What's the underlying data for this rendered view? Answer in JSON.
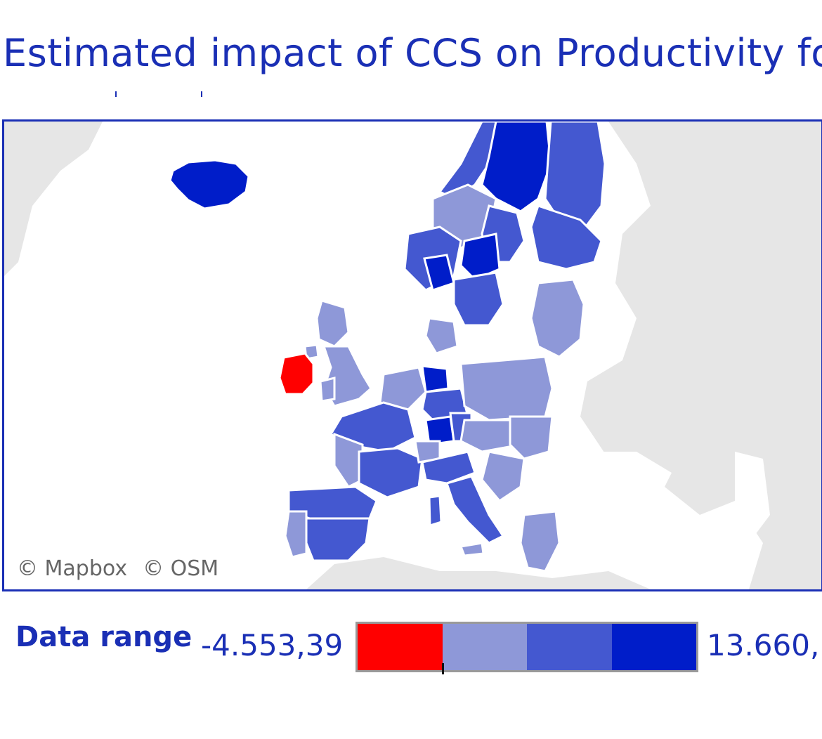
{
  "title": "Estimated impact of CCS on Productivity for",
  "map": {
    "attribution": {
      "mapbox": "© Mapbox",
      "osm": "© OSM"
    },
    "highlights": {
      "negative_region": "Ireland",
      "highest_regions": [
        "Iceland",
        "Norway (north)",
        "Sweden (north)"
      ]
    }
  },
  "legend": {
    "label": "Data range",
    "min_label": "-4.553,39",
    "max_label": "13.660,",
    "bins": [
      {
        "color": "#ff0000"
      },
      {
        "color": "#8e98d8"
      },
      {
        "color": "#4458d0"
      },
      {
        "color": "#001dc9"
      }
    ]
  },
  "colors": {
    "accent": "#1a2fb5",
    "land_bg": "#e6e6e6",
    "negative": "#ff0000",
    "low": "#8e98d8",
    "mid": "#4458d0",
    "high": "#001dc9"
  }
}
